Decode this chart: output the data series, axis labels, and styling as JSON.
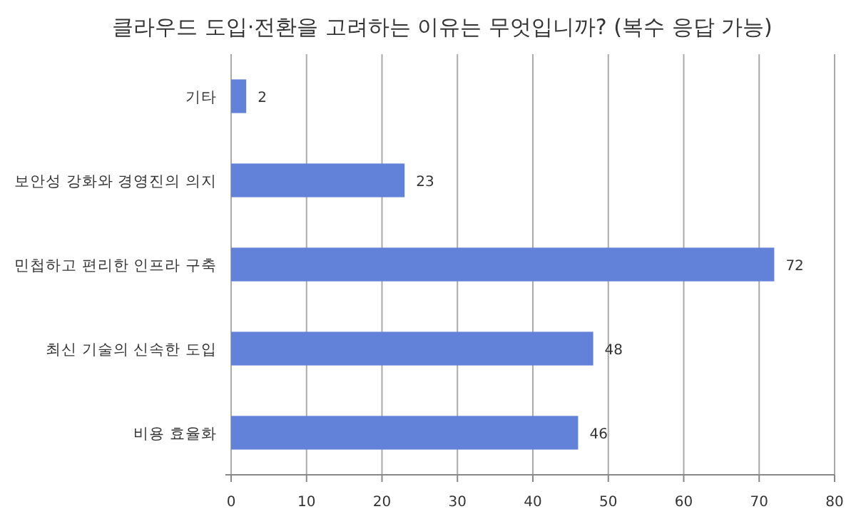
{
  "chart_data": {
    "type": "bar",
    "orientation": "horizontal",
    "title": "클라우드 도입·전환을 고려하는 이유는 무엇입니까? (복수 응답 가능)",
    "categories": [
      "기타",
      "보안성 강화와 경영진의 의지",
      "민첩하고 편리한 인프라 구축",
      "최신 기술의 신속한 도입",
      "비용 효율화"
    ],
    "values": [
      2,
      23,
      72,
      48,
      46
    ],
    "color": "#6182d8",
    "xlim": [
      0,
      80
    ],
    "xticks": [
      0,
      10,
      20,
      30,
      40,
      50,
      60,
      70,
      80
    ],
    "grid": "x",
    "data_labels": true
  }
}
